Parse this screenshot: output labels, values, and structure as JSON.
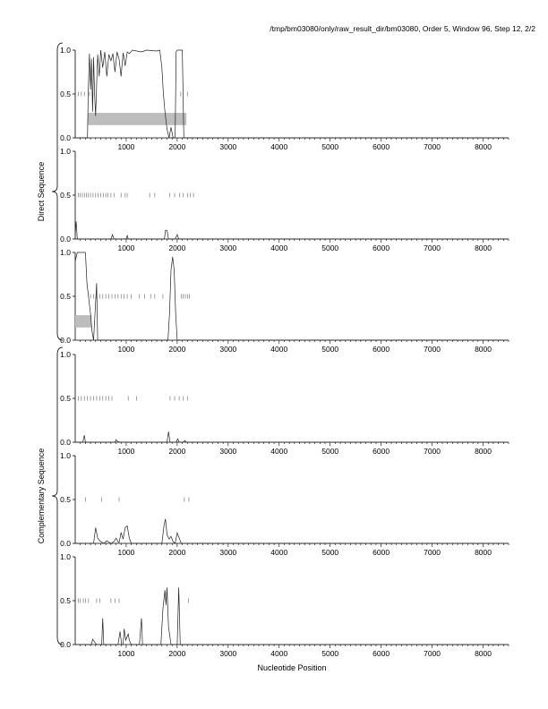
{
  "header": {
    "title": "/tmp/bm03080/only/raw_result_dir/bm03080, Order 5, Window 96, Step 12, 2/2"
  },
  "chart_data": {
    "type": "line",
    "xlabel": "Nucleotide Position",
    "xlim": [
      0,
      8500
    ],
    "ylim": [
      0,
      1
    ],
    "x_ticks": [
      1000,
      2000,
      3000,
      4000,
      5000,
      6000,
      7000,
      8000
    ],
    "y_ticks": [
      "0.0",
      "0.5",
      "1.0"
    ],
    "groups": [
      {
        "label": "Direct Sequence",
        "panels": [
          0,
          1,
          2
        ]
      },
      {
        "label": "Complementary Sequence",
        "panels": [
          3,
          4,
          5
        ]
      }
    ],
    "panels": [
      {
        "series": [
          [
            0,
            0
          ],
          [
            240,
            0
          ],
          [
            255,
            0.5
          ],
          [
            280,
            0.96
          ],
          [
            300,
            0.55
          ],
          [
            320,
            0.9
          ],
          [
            340,
            0.3
          ],
          [
            360,
            0.92
          ],
          [
            380,
            0.5
          ],
          [
            400,
            0.25
          ],
          [
            420,
            0.6
          ],
          [
            440,
            0.95
          ],
          [
            470,
            0.7
          ],
          [
            500,
            1.0
          ],
          [
            540,
            0.8
          ],
          [
            580,
            0.98
          ],
          [
            620,
            0.7
          ],
          [
            660,
            0.95
          ],
          [
            700,
            0.88
          ],
          [
            740,
            0.96
          ],
          [
            780,
            0.75
          ],
          [
            820,
            0.98
          ],
          [
            860,
            0.9
          ],
          [
            900,
            0.7
          ],
          [
            940,
            0.97
          ],
          [
            980,
            0.82
          ],
          [
            1020,
            0.98
          ],
          [
            1060,
            0.96
          ],
          [
            1120,
            1.0
          ],
          [
            1300,
            0.98
          ],
          [
            1400,
            1.0
          ],
          [
            1600,
            0.99
          ],
          [
            1660,
            1.0
          ],
          [
            1700,
            0.8
          ],
          [
            1730,
            0.5
          ],
          [
            1760,
            0.3
          ],
          [
            1800,
            0.1
          ],
          [
            1840,
            0.0
          ],
          [
            1880,
            0.12
          ],
          [
            1920,
            0.0
          ],
          [
            1960,
            0.0
          ],
          [
            1980,
            0.98
          ],
          [
            2000,
            1.0
          ],
          [
            2100,
            1.0
          ],
          [
            2130,
            0.0
          ],
          [
            8500,
            0
          ]
        ],
        "ticks_x": [
          60,
          120,
          180,
          280,
          2070,
          2200
        ],
        "bars": [
          [
            250,
            2180
          ]
        ]
      },
      {
        "series": [
          [
            0,
            0.05
          ],
          [
            20,
            0.2
          ],
          [
            40,
            0
          ],
          [
            700,
            0
          ],
          [
            730,
            0.05
          ],
          [
            760,
            0
          ],
          [
            1000,
            0
          ],
          [
            1020,
            0.04
          ],
          [
            1040,
            0
          ],
          [
            1750,
            0
          ],
          [
            1770,
            0.1
          ],
          [
            1800,
            0.1
          ],
          [
            1830,
            0
          ],
          [
            1960,
            0
          ],
          [
            2000,
            0.05
          ],
          [
            2030,
            0
          ],
          [
            8500,
            0
          ]
        ],
        "ticks_x": [
          60,
          100,
          140,
          180,
          220,
          260,
          300,
          350,
          400,
          450,
          500,
          550,
          600,
          640,
          700,
          760,
          900,
          980,
          1020,
          1460,
          1560,
          1850,
          1950,
          2050,
          2120,
          2200,
          2260,
          2320
        ],
        "bars": []
      },
      {
        "series": [
          [
            0,
            0.9
          ],
          [
            40,
            1.0
          ],
          [
            200,
            1.0
          ],
          [
            230,
            0.65
          ],
          [
            260,
            0.5
          ],
          [
            300,
            0.3
          ],
          [
            330,
            0.1
          ],
          [
            360,
            0
          ],
          [
            420,
            0.65
          ],
          [
            440,
            0
          ],
          [
            1820,
            0
          ],
          [
            1850,
            0.3
          ],
          [
            1880,
            0.8
          ],
          [
            1910,
            0.95
          ],
          [
            1940,
            0.8
          ],
          [
            1970,
            0.3
          ],
          [
            2000,
            0
          ],
          [
            8500,
            0
          ]
        ],
        "ticks_x": [
          300,
          360,
          420,
          480,
          540,
          600,
          660,
          720,
          780,
          840,
          900,
          960,
          1020,
          1100,
          1260,
          1360,
          1480,
          1560,
          1720,
          2080,
          2120,
          2160,
          2200,
          2240
        ],
        "bars": [
          [
            0,
            320
          ]
        ]
      },
      {
        "series": [
          [
            0,
            0
          ],
          [
            150,
            0
          ],
          [
            180,
            0.08
          ],
          [
            200,
            0
          ],
          [
            780,
            0
          ],
          [
            800,
            0.03
          ],
          [
            830,
            0.01
          ],
          [
            870,
            0
          ],
          [
            1800,
            0
          ],
          [
            1830,
            0.12
          ],
          [
            1860,
            0
          ],
          [
            1980,
            0
          ],
          [
            2010,
            0.04
          ],
          [
            2040,
            0
          ],
          [
            2120,
            0
          ],
          [
            2150,
            0.02
          ],
          [
            2180,
            0
          ],
          [
            8500,
            0
          ]
        ],
        "ticks_x": [
          60,
          120,
          180,
          240,
          300,
          360,
          420,
          480,
          540,
          600,
          660,
          720,
          1040,
          1200,
          1860,
          1950,
          2040,
          2120,
          2200
        ],
        "bars": []
      },
      {
        "series": [
          [
            0,
            0
          ],
          [
            360,
            0
          ],
          [
            400,
            0.18
          ],
          [
            440,
            0.06
          ],
          [
            480,
            0.03
          ],
          [
            560,
            0
          ],
          [
            620,
            0.03
          ],
          [
            700,
            0
          ],
          [
            760,
            0.02
          ],
          [
            800,
            0.06
          ],
          [
            840,
            0.02
          ],
          [
            860,
            0.01
          ],
          [
            900,
            0.12
          ],
          [
            940,
            0.05
          ],
          [
            980,
            0.18
          ],
          [
            1020,
            0.2
          ],
          [
            1060,
            0.06
          ],
          [
            1100,
            0
          ],
          [
            1700,
            0
          ],
          [
            1740,
            0.2
          ],
          [
            1770,
            0.28
          ],
          [
            1800,
            0.1
          ],
          [
            1840,
            0.05
          ],
          [
            1880,
            0.08
          ],
          [
            1920,
            0.02
          ],
          [
            1960,
            0.0
          ],
          [
            2000,
            0.12
          ],
          [
            2040,
            0.06
          ],
          [
            2080,
            0
          ],
          [
            8500,
            0
          ]
        ],
        "ticks_x": [
          200,
          520,
          860,
          2140,
          2230
        ],
        "bars": []
      },
      {
        "series": [
          [
            0,
            0
          ],
          [
            320,
            0
          ],
          [
            340,
            0.06
          ],
          [
            380,
            0.03
          ],
          [
            420,
            0
          ],
          [
            520,
            0
          ],
          [
            540,
            0.3
          ],
          [
            560,
            0
          ],
          [
            840,
            0
          ],
          [
            880,
            0.15
          ],
          [
            910,
            0
          ],
          [
            940,
            0
          ],
          [
            960,
            0.18
          ],
          [
            990,
            0.05
          ],
          [
            1040,
            0.12
          ],
          [
            1060,
            0.05
          ],
          [
            1100,
            0
          ],
          [
            1260,
            0
          ],
          [
            1300,
            0.3
          ],
          [
            1320,
            0
          ],
          [
            1680,
            0
          ],
          [
            1720,
            0.4
          ],
          [
            1760,
            0.62
          ],
          [
            1780,
            0.45
          ],
          [
            1800,
            0.65
          ],
          [
            1830,
            0.2
          ],
          [
            1880,
            0
          ],
          [
            2000,
            0
          ],
          [
            2030,
            0.65
          ],
          [
            2060,
            0
          ],
          [
            8500,
            0
          ]
        ],
        "ticks_x": [
          60,
          100,
          160,
          200,
          260,
          420,
          480,
          700,
          780,
          860,
          2220
        ],
        "bars": []
      }
    ]
  }
}
